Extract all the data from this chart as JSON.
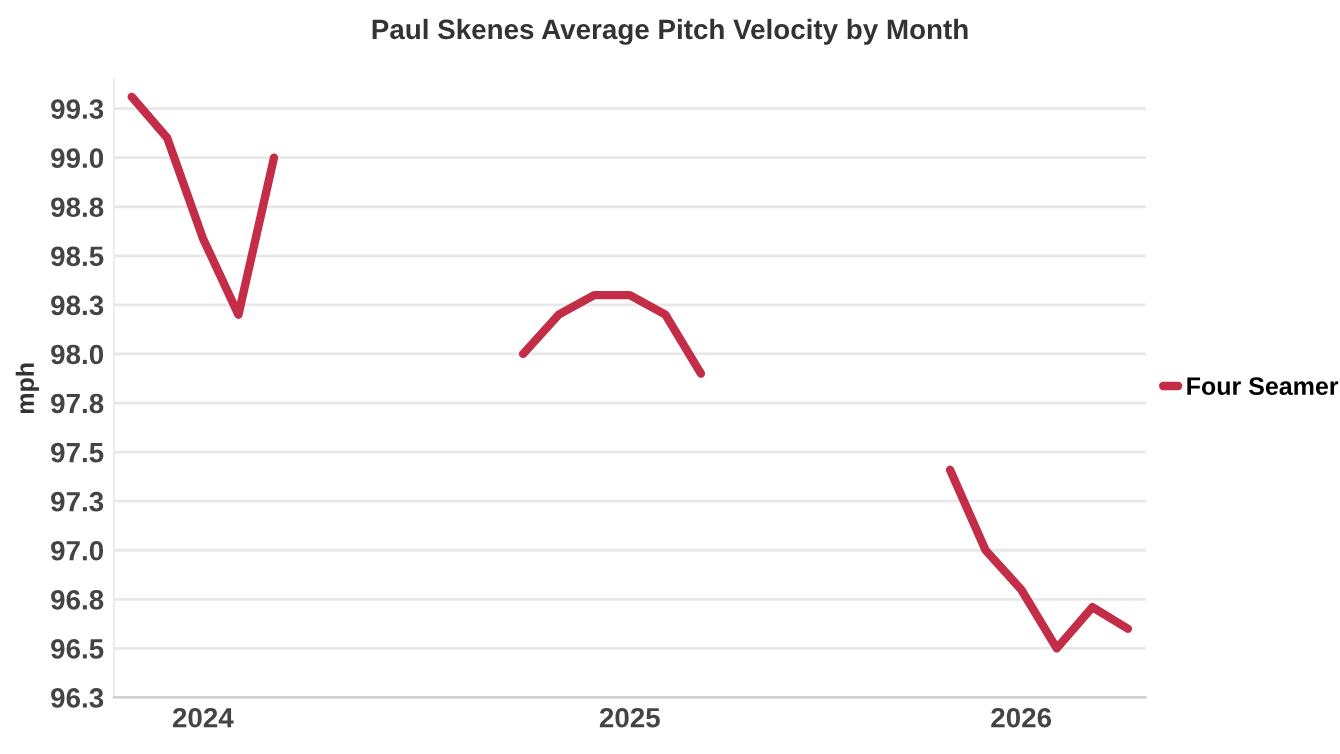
{
  "chart_data": {
    "type": "line",
    "title": "Paul Skenes Average Pitch Velocity by Month",
    "ylabel": "mph",
    "categories": [
      null,
      null,
      "2024",
      null,
      null,
      null,
      null,
      null,
      null,
      null,
      null,
      null,
      null,
      null,
      "2025",
      null,
      null,
      null,
      null,
      null,
      null,
      null,
      null,
      null,
      null,
      "2026",
      null,
      null,
      null
    ],
    "series": [
      {
        "name": "Four Seamer",
        "color": "#c42d48",
        "values": [
          99.31,
          99.1,
          98.59,
          98.2,
          99.0,
          null,
          null,
          null,
          null,
          null,
          null,
          98.0,
          98.2,
          98.3,
          98.3,
          98.2,
          97.9,
          null,
          null,
          null,
          null,
          null,
          null,
          97.41,
          97.0,
          96.8,
          96.5,
          96.71,
          96.6
        ]
      }
    ],
    "ylim": [
      96.25,
      99.4
    ],
    "yticks": [
      {
        "value": 96.25,
        "label": "96.3"
      },
      96.5,
      {
        "value": 96.75,
        "label": "96.8"
      },
      {
        "value": 97.0,
        "label": "97.0"
      },
      {
        "value": 97.25,
        "label": "97.3"
      },
      97.5,
      {
        "value": 97.75,
        "label": "97.8"
      },
      {
        "value": 98.0,
        "label": "98.0"
      },
      {
        "value": 98.25,
        "label": "98.3"
      },
      98.5,
      {
        "value": 98.75,
        "label": "98.8"
      },
      {
        "value": 99.0,
        "label": "99.0"
      },
      {
        "value": 99.25,
        "label": "99.3"
      }
    ],
    "grid": "y",
    "legend": "right",
    "marker": "none",
    "line_style": "solid"
  }
}
